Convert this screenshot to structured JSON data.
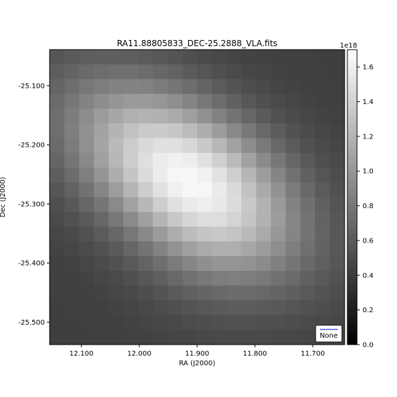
{
  "chart_data": {
    "type": "heatmap",
    "title": "RA11.88805833_DEC-25.2888_VLA.fits",
    "xlabel": "RA (J2000)",
    "ylabel": "Dec (J2000)",
    "x_ticks": [
      {
        "value": 12.1,
        "label": "12.100"
      },
      {
        "value": 12.0,
        "label": "12.000"
      },
      {
        "value": 11.9,
        "label": "11.900"
      },
      {
        "value": 11.8,
        "label": "11.800"
      },
      {
        "value": 11.7,
        "label": "11.700"
      }
    ],
    "y_ticks": [
      {
        "value": -25.1,
        "label": "-25.100"
      },
      {
        "value": -25.2,
        "label": "-25.200"
      },
      {
        "value": -25.3,
        "label": "-25.300"
      },
      {
        "value": -25.4,
        "label": "-25.400"
      },
      {
        "value": -25.5,
        "label": "-25.500"
      }
    ],
    "xlim": [
      12.155,
      11.645
    ],
    "ylim": [
      -25.538,
      -25.039
    ],
    "colormap": "gray",
    "colorbar": {
      "min": 0.0,
      "max": 1.7,
      "scale_label": "1e18",
      "ticks": [
        {
          "value": 0.0,
          "label": "0.0"
        },
        {
          "value": 0.2,
          "label": "0.2"
        },
        {
          "value": 0.4,
          "label": "0.4"
        },
        {
          "value": 0.6,
          "label": "0.6"
        },
        {
          "value": 0.8,
          "label": "0.8"
        },
        {
          "value": 1.0,
          "label": "1.0"
        },
        {
          "value": 1.2,
          "label": "1.2"
        },
        {
          "value": 1.4,
          "label": "1.4"
        },
        {
          "value": 1.6,
          "label": "1.6"
        }
      ]
    },
    "grid_rows": 20,
    "grid_cols": 20,
    "source_peak": {
      "ra": 11.888,
      "dec": -25.289,
      "value": 1.55
    },
    "legend": {
      "placement": "lower-right",
      "entry": "None",
      "color": "#0000cc"
    }
  }
}
